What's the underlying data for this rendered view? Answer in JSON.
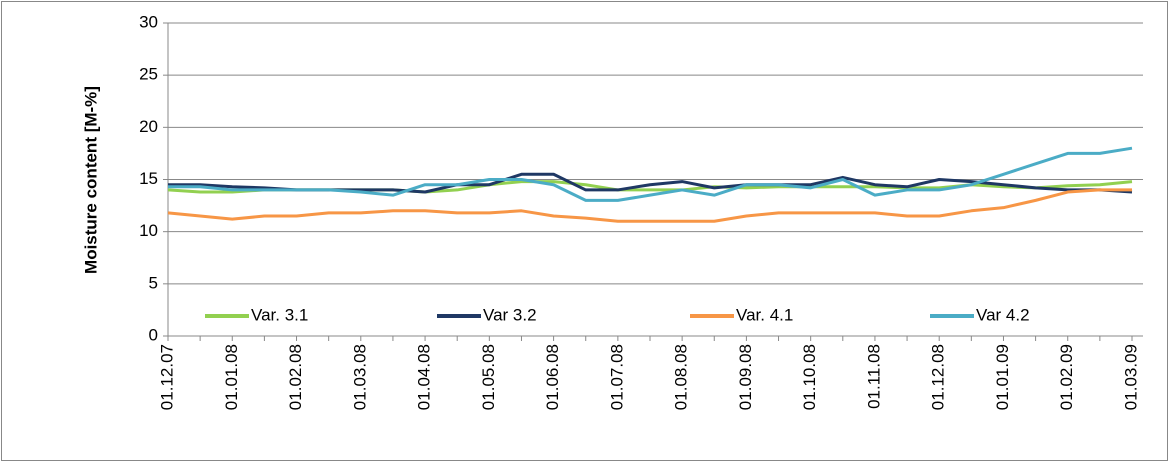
{
  "chart_data": {
    "type": "line",
    "y_label": "Moisture content  [M-%]",
    "categories": [
      "01.12.07",
      null,
      "01.01.08",
      null,
      "01.02.08",
      null,
      "01.03.08",
      null,
      "01.04.08",
      null,
      "01.05.08",
      null,
      "01.06.08",
      null,
      "01.07.08",
      null,
      "01.08.08",
      null,
      "01.09.08",
      null,
      "01.10.08",
      null,
      "01.11.08",
      null,
      "01.12.08",
      null,
      "01.01.09",
      null,
      "01.02.09",
      null,
      "01.03.09"
    ],
    "series": [
      {
        "name": "Var. 3.1",
        "color": "#92d050",
        "values": [
          14,
          13.8,
          13.8,
          14,
          14,
          14,
          14,
          14,
          13.8,
          14,
          14.5,
          14.8,
          14.8,
          14.5,
          14,
          14,
          14,
          14.3,
          14.2,
          14.3,
          14.3,
          14.3,
          14.3,
          14.2,
          14.2,
          14.5,
          14.3,
          14.2,
          14.4,
          14.5,
          14.8
        ]
      },
      {
        "name": "Var 3.2",
        "color": "#1f3864",
        "values": [
          14.5,
          14.5,
          14.3,
          14.2,
          14,
          14,
          14,
          14,
          13.8,
          14.5,
          14.5,
          15.5,
          15.5,
          14,
          14,
          14.5,
          14.8,
          14.2,
          14.5,
          14.5,
          14.5,
          15.2,
          14.5,
          14.3,
          15,
          14.8,
          14.5,
          14.2,
          14,
          14,
          13.8
        ]
      },
      {
        "name": "Var. 4.1",
        "color": "#f79646",
        "values": [
          11.8,
          11.5,
          11.2,
          11.5,
          11.5,
          11.8,
          11.8,
          12,
          12,
          11.8,
          11.8,
          12,
          11.5,
          11.3,
          11,
          11,
          11,
          11,
          11.5,
          11.8,
          11.8,
          11.8,
          11.8,
          11.5,
          11.5,
          12,
          12.3,
          13,
          13.8,
          14,
          14
        ]
      },
      {
        "name": "Var 4.2",
        "color": "#4bacc6",
        "values": [
          14.3,
          14.3,
          14,
          14,
          14,
          14,
          13.8,
          13.5,
          14.5,
          14.5,
          15,
          15,
          14.5,
          13,
          13,
          13.5,
          14,
          13.5,
          14.5,
          14.5,
          14.2,
          15,
          13.5,
          14,
          14,
          14.5,
          15.5,
          16.5,
          17.5,
          17.5,
          18
        ]
      }
    ],
    "ylim": [
      0,
      30
    ],
    "yticks": [
      0,
      5,
      10,
      15,
      20,
      25,
      30
    ],
    "grid": true
  }
}
